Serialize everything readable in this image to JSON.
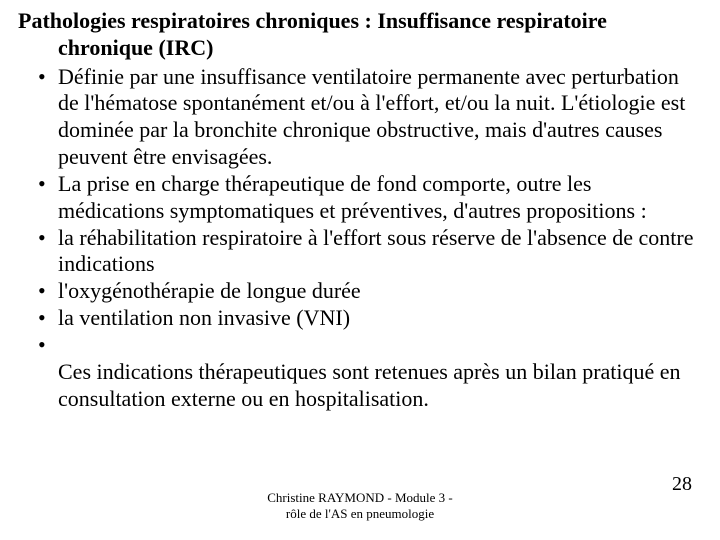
{
  "colors": {
    "background": "#ffffff",
    "text": "#000000"
  },
  "typography": {
    "body_font_family": "Times New Roman",
    "body_fontsize_pt": 16,
    "footer_fontsize_pt": 10
  },
  "title": {
    "line1": "Pathologies respiratoires chroniques : Insuffisance respiratoire",
    "line2": "chronique (IRC)"
  },
  "bullets": [
    "Définie par une insuffisance ventilatoire permanente avec perturbation de l'hématose spontanément et/ou à l'effort, et/ou la nuit. L'étiologie est dominée par la bronchite chronique obstructive, mais d'autres causes peuvent être envisagées.",
    "La prise en charge thérapeutique de fond comporte, outre les médications symptomatiques et préventives, d'autres propositions :",
    "la réhabilitation respiratoire à l'effort sous réserve de l'absence de contre indications",
    "l'oxygénothérapie de longue durée",
    "la ventilation non invasive (VNI)"
  ],
  "after_empty_bullet": "Ces indications thérapeutiques sont retenues après un bilan pratiqué en consultation externe ou en hospitalisation.",
  "footer": {
    "line1": "Christine RAYMOND - Module 3 -",
    "line2": "rôle de l'AS en pneumologie"
  },
  "page_number": "28"
}
